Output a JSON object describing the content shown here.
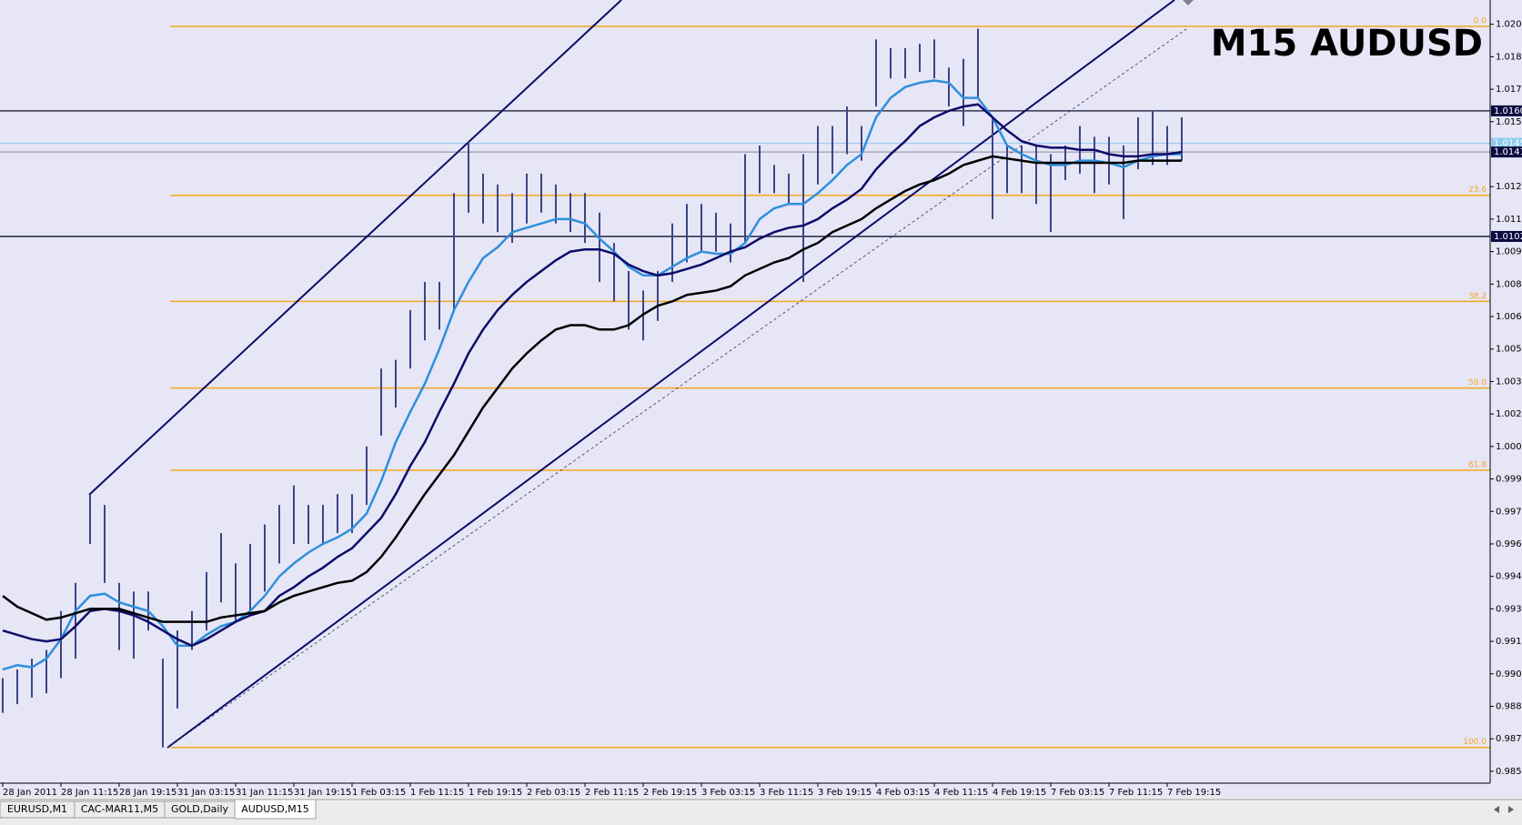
{
  "chart_data": {
    "type": "ohlc",
    "title": "M15 AUDUSD",
    "ylim": [
      0.98495,
      1.02112
    ],
    "yticks": [
      0.9855,
      {
        "value": 0.987,
        "label": "0.9870"
      },
      0.9885,
      {
        "value": 0.99,
        "label": "0.9900"
      },
      0.9915,
      {
        "value": 0.993,
        "label": "0.9930"
      },
      0.9945,
      {
        "value": 0.996,
        "label": "0.9960"
      },
      0.9975,
      {
        "value": 0.999,
        "label": "0.9990"
      },
      1.0005,
      {
        "value": 1.002,
        "label": "1.0020"
      },
      1.0035,
      {
        "value": 1.005,
        "label": "1.0050"
      },
      1.0065,
      {
        "value": 1.008,
        "label": "1.0080"
      },
      1.0095,
      {
        "value": 1.011,
        "label": "1.0110"
      },
      1.0125,
      1.0155,
      {
        "value": 1.017,
        "label": "1.0170"
      },
      1.0185,
      {
        "value": 1.02,
        "label": "1.0200"
      }
    ],
    "grid": false,
    "x": [
      "28 Jan 2011",
      null,
      null,
      null,
      "28 Jan 11:15",
      null,
      null,
      null,
      "28 Jan 19:15",
      null,
      null,
      null,
      "31 Jan 03:15",
      null,
      null,
      null,
      "31 Jan 11:15",
      null,
      null,
      null,
      "31 Jan 19:15",
      null,
      null,
      null,
      "1 Feb 03:15",
      null,
      null,
      null,
      "1 Feb 11:15",
      null,
      null,
      null,
      "1 Feb 19:15",
      null,
      null,
      null,
      "2 Feb 03:15",
      null,
      null,
      null,
      "2 Feb 11:15",
      null,
      null,
      null,
      "2 Feb 19:15",
      null,
      null,
      null,
      "3 Feb 03:15",
      null,
      null,
      null,
      "3 Feb 11:15",
      null,
      null,
      null,
      "3 Feb 19:15",
      null,
      null,
      null,
      "4 Feb 03:15",
      null,
      null,
      null,
      "4 Feb 11:15",
      null,
      null,
      null,
      "4 Feb 19:15",
      null,
      null,
      null,
      "7 Feb 03:15",
      null,
      null,
      null,
      "7 Feb 11:15",
      null,
      null,
      null,
      "7 Feb 19:15",
      null
    ],
    "bars": {
      "color": "#3c4488",
      "high": [
        0.9898,
        0.9902,
        0.9907,
        0.9911,
        0.9929,
        0.9942,
        0.9983,
        0.9978,
        0.9942,
        0.9938,
        0.9938,
        0.9907,
        0.992,
        0.9929,
        0.9947,
        0.9965,
        0.9951,
        0.996,
        0.9969,
        0.9978,
        0.9987,
        0.9978,
        0.9978,
        0.9983,
        0.9983,
        1.0005,
        1.0041,
        1.0045,
        1.0068,
        1.0081,
        1.0081,
        1.0122,
        1.0146,
        1.0131,
        1.0126,
        1.0122,
        1.0131,
        1.0131,
        1.0126,
        1.0122,
        1.0122,
        1.0113,
        1.0099,
        1.0086,
        1.0077,
        1.0086,
        1.0108,
        1.0117,
        1.0117,
        1.0113,
        1.0108,
        1.014,
        1.0144,
        1.0135,
        1.0131,
        1.014,
        1.0153,
        1.0153,
        1.0162,
        1.0153,
        1.0193,
        1.0189,
        1.0189,
        1.0191,
        1.0193,
        1.018,
        1.0184,
        1.0198,
        1.0157,
        1.0144,
        1.0144,
        1.0144,
        1.014,
        1.0144,
        1.0153,
        1.0148,
        1.0148,
        1.0144,
        1.0157,
        1.016,
        1.0153,
        1.0157
      ],
      "low": [
        0.9882,
        0.9886,
        0.9889,
        0.9891,
        0.9898,
        0.9907,
        0.996,
        0.9942,
        0.9911,
        0.9907,
        0.992,
        0.9866,
        0.9884,
        0.9911,
        0.992,
        0.9933,
        0.9924,
        0.9929,
        0.9938,
        0.9951,
        0.996,
        0.996,
        0.996,
        0.9965,
        0.9965,
        0.9978,
        1.001,
        1.0023,
        1.0041,
        1.0054,
        1.0059,
        1.0068,
        1.0113,
        1.0108,
        1.0104,
        1.0099,
        1.0108,
        1.0113,
        1.0108,
        1.0104,
        1.0099,
        1.0081,
        1.0072,
        1.0059,
        1.0054,
        1.0063,
        1.0081,
        1.009,
        1.0095,
        1.0095,
        1.009,
        1.0099,
        1.0122,
        1.0122,
        1.0117,
        1.0081,
        1.0126,
        1.0131,
        1.014,
        1.0137,
        1.0162,
        1.0175,
        1.0175,
        1.0178,
        1.0175,
        1.0162,
        1.0153,
        1.0166,
        1.011,
        1.0122,
        1.0122,
        1.0117,
        1.0104,
        1.0128,
        1.0131,
        1.0122,
        1.0126,
        1.011,
        1.0133,
        1.0135,
        1.0135,
        1.0137
      ]
    },
    "series": [
      {
        "color": "#2f8fdc",
        "values": [
          0.9902,
          0.9904,
          0.9903,
          0.9907,
          0.9916,
          0.9929,
          0.9936,
          0.9937,
          0.9933,
          0.9931,
          0.9929,
          0.9922,
          0.9913,
          0.9913,
          0.9918,
          0.9922,
          0.9924,
          0.9929,
          0.9936,
          0.9945,
          0.9951,
          0.9956,
          0.996,
          0.9963,
          0.9967,
          0.9974,
          0.9989,
          1.0007,
          1.0021,
          1.0034,
          1.005,
          1.0068,
          1.0081,
          1.0092,
          1.0097,
          1.0104,
          1.0106,
          1.0108,
          1.011,
          1.011,
          1.0108,
          1.0101,
          1.0095,
          1.0088,
          1.0084,
          1.0084,
          1.0088,
          1.0092,
          1.0095,
          1.0094,
          1.0094,
          1.0099,
          1.011,
          1.0115,
          1.0117,
          1.0117,
          1.0122,
          1.0128,
          1.0135,
          1.014,
          1.0157,
          1.0166,
          1.0171,
          1.0173,
          1.0174,
          1.0173,
          1.0166,
          1.0166,
          1.0157,
          1.0144,
          1.014,
          1.0137,
          1.0135,
          1.0135,
          1.0137,
          1.0137,
          1.0136,
          1.0134,
          1.0137,
          1.0139,
          1.014,
          1.014
        ]
      },
      {
        "color": "#0c0c6a",
        "values": [
          0.992,
          0.9918,
          0.9916,
          0.9915,
          0.9916,
          0.9922,
          0.9929,
          0.993,
          0.9929,
          0.9927,
          0.9924,
          0.992,
          0.9916,
          0.9913,
          0.9916,
          0.992,
          0.9924,
          0.9927,
          0.9929,
          0.9936,
          0.994,
          0.9945,
          0.9949,
          0.9954,
          0.9958,
          0.9965,
          0.9972,
          0.9983,
          0.9996,
          1.0007,
          1.0021,
          1.0034,
          1.0048,
          1.0059,
          1.0068,
          1.0075,
          1.0081,
          1.0086,
          1.0091,
          1.0095,
          1.0096,
          1.0096,
          1.0094,
          1.0089,
          1.0086,
          1.0084,
          1.0085,
          1.0087,
          1.0089,
          1.0092,
          1.0095,
          1.0097,
          1.0101,
          1.0104,
          1.0106,
          1.0107,
          1.011,
          1.0115,
          1.0119,
          1.0124,
          1.0133,
          1.014,
          1.0146,
          1.0153,
          1.0157,
          1.016,
          1.0162,
          1.0163,
          1.0157,
          1.0151,
          1.0146,
          1.0144,
          1.0143,
          1.0143,
          1.0142,
          1.0142,
          1.014,
          1.0139,
          1.0139,
          1.014,
          1.014,
          1.0141
        ]
      },
      {
        "color": "#000000",
        "values": [
          0.9936,
          0.9931,
          0.9928,
          0.9925,
          0.9926,
          0.9928,
          0.993,
          0.993,
          0.993,
          0.9928,
          0.9926,
          0.9924,
          0.9924,
          0.9924,
          0.9924,
          0.9926,
          0.9927,
          0.9928,
          0.9929,
          0.9933,
          0.9936,
          0.9938,
          0.994,
          0.9942,
          0.9943,
          0.9947,
          0.9954,
          0.9963,
          0.9973,
          0.9983,
          0.9992,
          1.0001,
          1.0012,
          1.0023,
          1.0032,
          1.0041,
          1.0048,
          1.0054,
          1.0059,
          1.0061,
          1.0061,
          1.0059,
          1.0059,
          1.0061,
          1.0066,
          1.007,
          1.0072,
          1.0075,
          1.0076,
          1.0077,
          1.0079,
          1.0084,
          1.0087,
          1.009,
          1.0092,
          1.0096,
          1.0099,
          1.0104,
          1.0107,
          1.011,
          1.0115,
          1.0119,
          1.0123,
          1.0126,
          1.0128,
          1.0131,
          1.0135,
          1.0137,
          1.0139,
          1.0138,
          1.0137,
          1.0136,
          1.0136,
          1.0136,
          1.0136,
          1.0136,
          1.0136,
          1.0136,
          1.0137,
          1.0137,
          1.0137,
          1.0137
        ]
      }
    ],
    "fib_levels": [
      {
        "value": 1.0199,
        "label": "0.0"
      },
      {
        "value": 1.0121,
        "label": "23.6"
      },
      {
        "value": 1.0072,
        "label": "38.2"
      },
      {
        "value": 1.0032,
        "label": "50.0"
      },
      {
        "value": 0.9994,
        "label": "61.8"
      },
      {
        "value": 0.9866,
        "label": "100.0"
      }
    ],
    "fib_color": "#f5a623",
    "price_lines": [
      {
        "value": 1.016,
        "label": "1.0160",
        "color": "#101030",
        "box_color": "#0a0a40"
      },
      {
        "value": 1.0145,
        "label": "1.0145",
        "color": "#8ecbf0",
        "box_color": "#8ecbf0"
      },
      {
        "value": 1.0141,
        "label": "1.0141",
        "color": "#9a9aa8",
        "box_color": "#0a0a40"
      },
      {
        "value": 1.0102,
        "label": "1.0102",
        "color": "#101030",
        "box_color": "#0a0a40"
      }
    ]
  },
  "tabs": [
    "EURUSD,M1",
    "CAC-MAR11,M5",
    "GOLD,Daily",
    "AUDUSD,M15"
  ],
  "active_tab": 3
}
